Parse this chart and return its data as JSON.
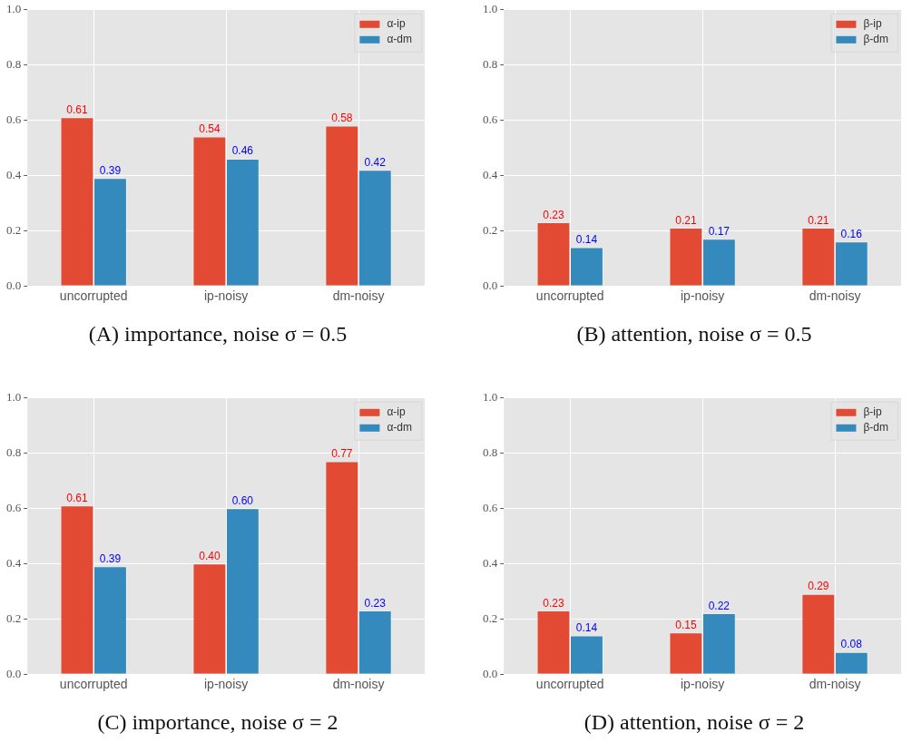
{
  "chart_data": [
    {
      "type": "bar",
      "title": "(A) importance, noise σ = 0.5",
      "categories": [
        "uncorrupted",
        "ip-noisy",
        "dm-noisy"
      ],
      "series": [
        {
          "name": "α-ip",
          "color": "#e24a33",
          "values": [
            0.61,
            0.54,
            0.58
          ]
        },
        {
          "name": "α-dm",
          "color": "#348abd",
          "values": [
            0.39,
            0.46,
            0.42
          ]
        }
      ],
      "ylim": [
        0,
        1
      ],
      "yticks": [
        {
          "value": 0,
          "label": "0.0"
        },
        {
          "value": 0.2,
          "label": "0.2"
        },
        {
          "value": 0.4,
          "label": "0.4"
        },
        {
          "value": 0.6,
          "label": "0.6"
        },
        {
          "value": 0.8,
          "label": "0.8"
        },
        {
          "value": 1,
          "label": "1.0"
        }
      ],
      "grid": true,
      "legend": "top right",
      "data_labels": true
    },
    {
      "type": "bar",
      "title": "(B) attention, noise σ = 0.5",
      "categories": [
        "uncorrupted",
        "ip-noisy",
        "dm-noisy"
      ],
      "series": [
        {
          "name": "β-ip",
          "color": "#e24a33",
          "values": [
            0.23,
            0.21,
            0.21
          ]
        },
        {
          "name": "β-dm",
          "color": "#348abd",
          "values": [
            0.14,
            0.17,
            0.16
          ]
        }
      ],
      "ylim": [
        0,
        1
      ],
      "yticks": [
        {
          "value": 0,
          "label": "0.0"
        },
        {
          "value": 0.2,
          "label": "0.2"
        },
        {
          "value": 0.4,
          "label": "0.4"
        },
        {
          "value": 0.6,
          "label": "0.6"
        },
        {
          "value": 0.8,
          "label": "0.8"
        },
        {
          "value": 1,
          "label": "1.0"
        }
      ],
      "grid": true,
      "legend": "top right",
      "data_labels": true
    },
    {
      "type": "bar",
      "title": "(C) importance, noise σ = 2",
      "categories": [
        "uncorrupted",
        "ip-noisy",
        "dm-noisy"
      ],
      "series": [
        {
          "name": "α-ip",
          "color": "#e24a33",
          "values": [
            0.61,
            0.4,
            0.77
          ],
          "value_labels": [
            "0.61",
            "0.40",
            "0.77"
          ]
        },
        {
          "name": "α-dm",
          "color": "#348abd",
          "values": [
            0.39,
            0.6,
            0.23
          ],
          "value_labels": [
            "0.39",
            "0.60",
            "0.23"
          ]
        }
      ],
      "ylim": [
        0,
        1
      ],
      "yticks": [
        {
          "value": 0,
          "label": "0.0"
        },
        {
          "value": 0.2,
          "label": "0.2"
        },
        {
          "value": 0.4,
          "label": "0.4"
        },
        {
          "value": 0.6,
          "label": "0.6"
        },
        {
          "value": 0.8,
          "label": "0.8"
        },
        {
          "value": 1,
          "label": "1.0"
        }
      ],
      "grid": true,
      "legend": "top right"
    },
    {
      "type": "bar",
      "title": "(D) attention, noise σ = 2",
      "categories": [
        "uncorrupted",
        "ip-noisy",
        "dm-noisy"
      ],
      "series": [
        {
          "name": "β-ip",
          "color": "#e24a33",
          "values": [
            0.23,
            0.15,
            0.29
          ]
        },
        {
          "name": "β-dm",
          "color": "#348abd",
          "values": [
            0.14,
            0.22,
            0.08
          ]
        }
      ],
      "ylim": [
        0,
        1
      ],
      "yticks": [
        {
          "value": 0,
          "label": "0.0"
        },
        {
          "value": 0.2,
          "label": "0.2"
        },
        {
          "value": 0.4,
          "label": "0.4"
        },
        {
          "value": 0.6,
          "label": "0.6"
        },
        {
          "value": 0.8,
          "label": "0.8"
        },
        {
          "value": 1,
          "label": "1.0"
        }
      ],
      "grid": true,
      "legend": "top right",
      "data_labels": true
    }
  ]
}
